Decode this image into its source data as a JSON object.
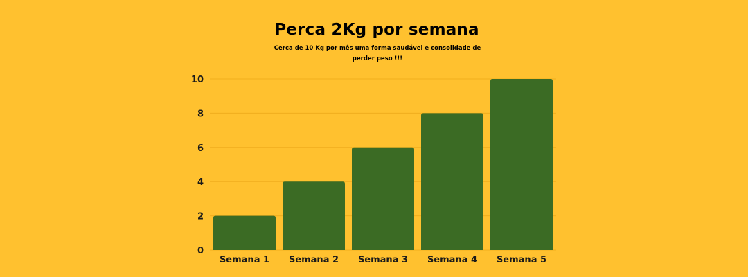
{
  "chart_data": {
    "type": "bar",
    "title": "Perca 2Kg por semana",
    "subtitle": "Cerca de 10 Kg por mês uma forma saudável e consolidade de perder peso !!!",
    "categories": [
      "Semana 1",
      "Semana 2",
      "Semana 3",
      "Semana 4",
      "Semana 5"
    ],
    "values": [
      2,
      4,
      6,
      8,
      10
    ],
    "yticks": [
      "0",
      "2",
      "4",
      "6",
      "8",
      "10"
    ],
    "ylim": [
      0,
      10
    ],
    "grid": true,
    "legend": "none",
    "colors": {
      "background": "#FFC12F",
      "bar": "#3B6B24",
      "grid": "#F0AE1E"
    }
  }
}
